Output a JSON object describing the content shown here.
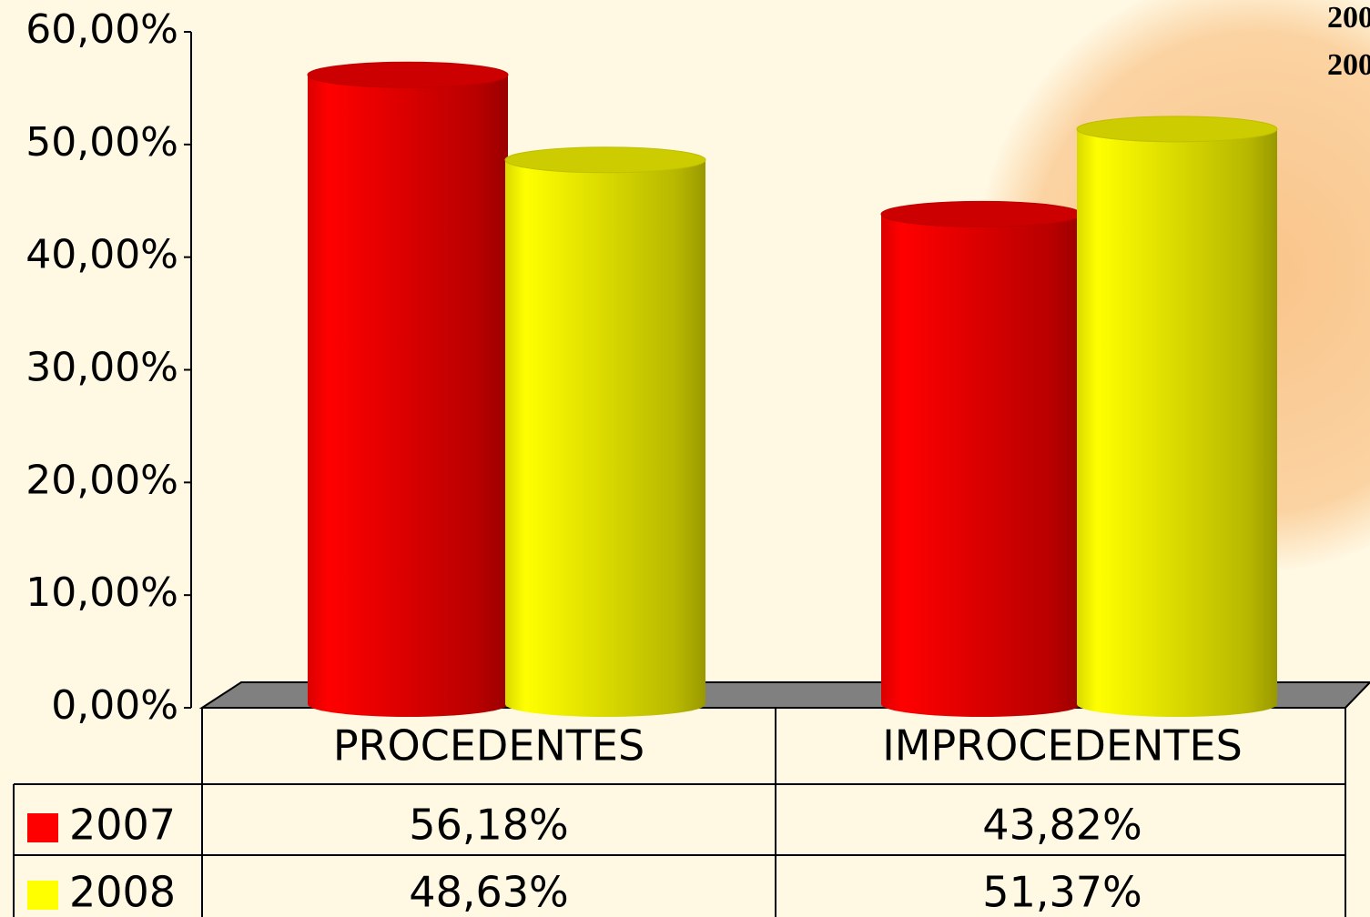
{
  "chart_data": {
    "type": "bar3d",
    "categories": [
      "PROCEDENTES",
      "IMPROCEDENTES"
    ],
    "series": [
      {
        "name": "2007",
        "color": "#ff0000",
        "values": [
          56.18,
          43.82
        ],
        "value_labels": [
          "56,18%",
          "43,82%"
        ]
      },
      {
        "name": "2008",
        "color": "#ffff00",
        "values": [
          48.63,
          51.37
        ],
        "value_labels": [
          "48,63%",
          "51,37%"
        ]
      }
    ],
    "ylim": [
      0,
      60
    ],
    "yticks": [
      {
        "value": 0,
        "label": "0,00%"
      },
      {
        "value": 10,
        "label": "10,00%"
      },
      {
        "value": 20,
        "label": "20,00%"
      },
      {
        "value": 30,
        "label": "30,00%"
      },
      {
        "value": 40,
        "label": "40,00%"
      },
      {
        "value": 50,
        "label": "50,00%"
      },
      {
        "value": 60,
        "label": "60,00%"
      }
    ]
  }
}
